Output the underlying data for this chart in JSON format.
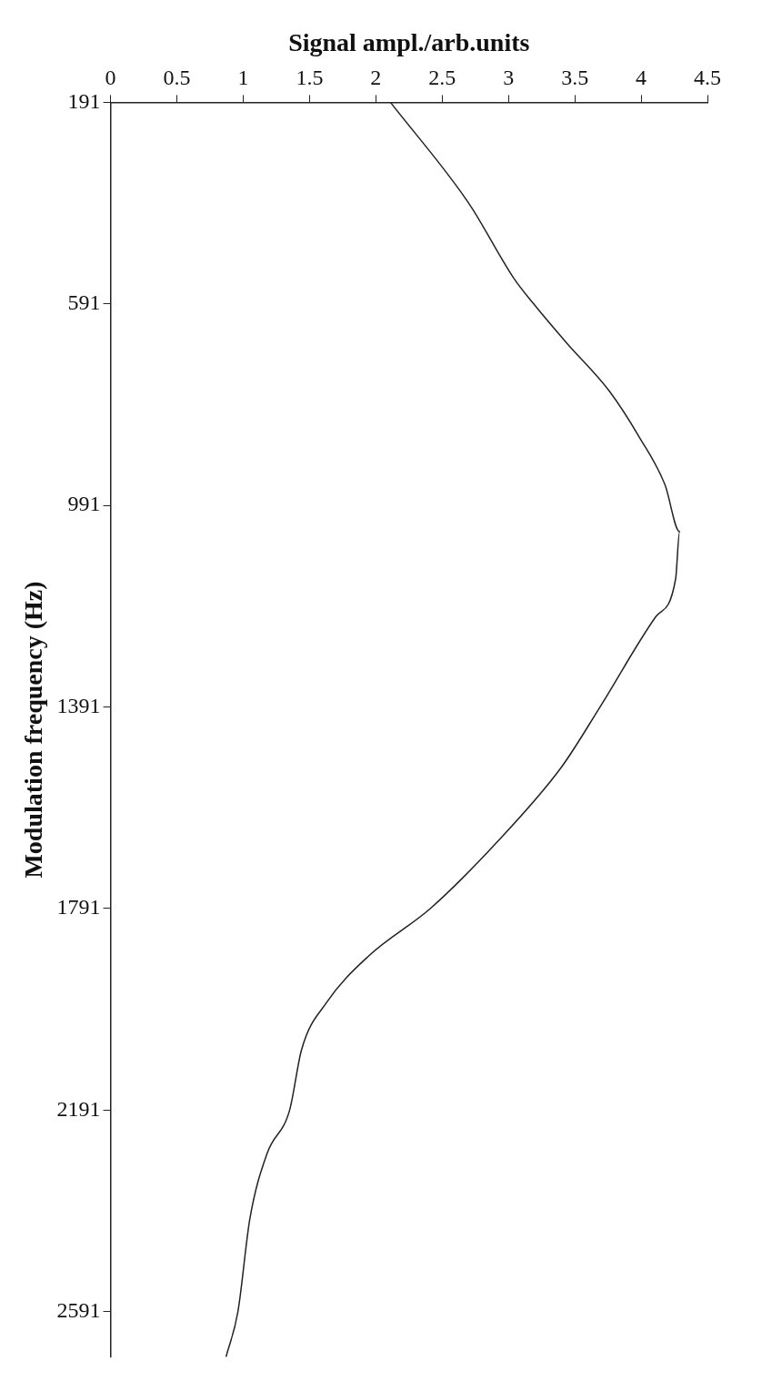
{
  "chart_data": {
    "type": "line",
    "xlabel": "Signal ampl./arb.units",
    "ylabel": "Modulation frequency (Hz)",
    "series": [
      {
        "color": "#222222",
        "x": [
          2.11,
          2.7,
          3.04,
          3.19,
          3.44,
          3.76,
          3.99,
          4.18,
          4.29,
          4.26,
          4.11,
          3.69,
          3.4,
          2.91,
          2.41,
          1.95,
          1.63,
          1.44,
          1.35,
          1.18,
          1.05,
          0.96,
          0.87
        ],
        "values": [
          191,
          391,
          540,
          591,
          669,
          764,
          857,
          950,
          1043,
          1137,
          1212,
          1391,
          1510,
          1660,
          1791,
          1884,
          1977,
          2071,
          2191,
          2277,
          2407,
          2591,
          2681
        ]
      }
    ],
    "xlim": [
      0,
      4.5
    ],
    "xticks": [
      0,
      0.5,
      1,
      1.5,
      2,
      2.5,
      3,
      3.5,
      4,
      4.5
    ],
    "ylim": [
      2681,
      191
    ],
    "yticks": [
      191,
      591,
      991,
      1391,
      1791,
      2191,
      2591
    ],
    "grid": false,
    "legend": false,
    "marker": "none",
    "line_style": "solid"
  }
}
